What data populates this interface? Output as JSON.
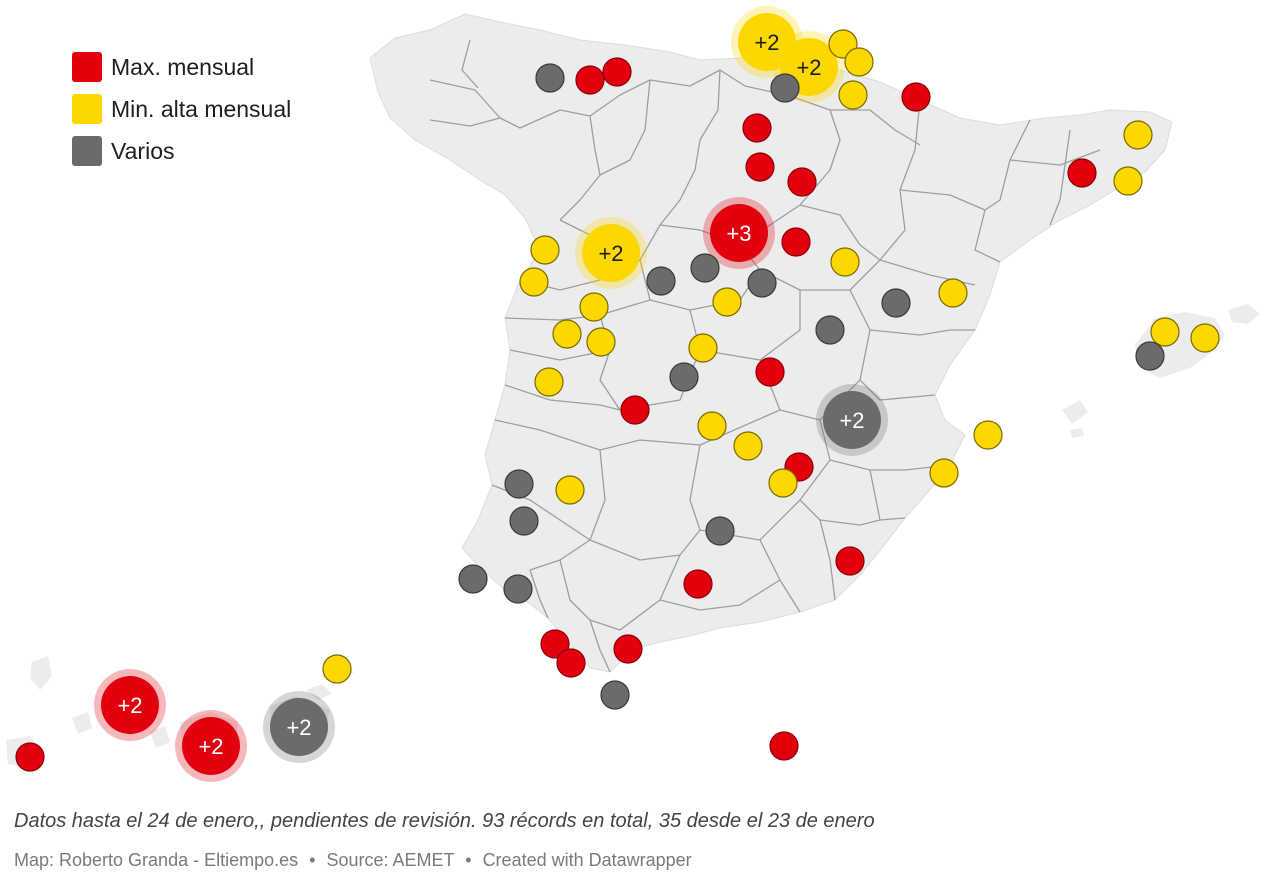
{
  "legend": {
    "items": [
      {
        "key": "max",
        "label": "Max. mensual",
        "color": "#e2000f"
      },
      {
        "key": "min",
        "label": "Min. alta mensual",
        "color": "#fcd700"
      },
      {
        "key": "varios",
        "label": "Varios",
        "color": "#6b6b6b"
      }
    ]
  },
  "colors": {
    "max": "#e2000f",
    "min": "#fcd700",
    "varios": "#6b6b6b",
    "land": "#ececec",
    "border": "#9e9e9e"
  },
  "markers": [
    {
      "type": "varios",
      "cluster": false
    },
    {
      "type": "max",
      "cluster": false
    },
    {
      "type": "max",
      "cluster": false
    },
    {
      "type": "min",
      "cluster": true,
      "label": "+2"
    },
    {
      "type": "min",
      "cluster": true,
      "label": "+2"
    },
    {
      "type": "min",
      "cluster": false
    },
    {
      "type": "min",
      "cluster": false
    },
    {
      "type": "min",
      "cluster": false
    },
    {
      "type": "varios",
      "cluster": false
    },
    {
      "type": "max",
      "cluster": false
    },
    {
      "type": "max",
      "cluster": false
    },
    {
      "type": "max",
      "cluster": false
    },
    {
      "type": "max",
      "cluster": false
    },
    {
      "type": "min",
      "cluster": false
    },
    {
      "type": "min",
      "cluster": false
    },
    {
      "type": "max",
      "cluster": false
    },
    {
      "type": "max",
      "cluster": true,
      "label": "+3"
    },
    {
      "type": "max",
      "cluster": false
    },
    {
      "type": "min",
      "cluster": true,
      "label": "+2"
    },
    {
      "type": "min",
      "cluster": false
    },
    {
      "type": "min",
      "cluster": false
    },
    {
      "type": "varios",
      "cluster": false
    },
    {
      "type": "varios",
      "cluster": false
    },
    {
      "type": "varios",
      "cluster": false
    },
    {
      "type": "min",
      "cluster": false
    },
    {
      "type": "min",
      "cluster": false
    },
    {
      "type": "varios",
      "cluster": false
    },
    {
      "type": "min",
      "cluster": false
    },
    {
      "type": "min",
      "cluster": false
    },
    {
      "type": "min",
      "cluster": false
    },
    {
      "type": "min",
      "cluster": false
    },
    {
      "type": "varios",
      "cluster": false
    },
    {
      "type": "min",
      "cluster": false
    },
    {
      "type": "min",
      "cluster": false
    },
    {
      "type": "min",
      "cluster": false
    },
    {
      "type": "min",
      "cluster": false
    },
    {
      "type": "varios",
      "cluster": false
    },
    {
      "type": "max",
      "cluster": false
    },
    {
      "type": "varios",
      "cluster": false
    },
    {
      "type": "max",
      "cluster": false
    },
    {
      "type": "varios",
      "cluster": true,
      "label": "+2"
    },
    {
      "type": "min",
      "cluster": false
    },
    {
      "type": "min",
      "cluster": false
    },
    {
      "type": "min",
      "cluster": false
    },
    {
      "type": "max",
      "cluster": false
    },
    {
      "type": "min",
      "cluster": false
    },
    {
      "type": "min",
      "cluster": false
    },
    {
      "type": "varios",
      "cluster": false
    },
    {
      "type": "varios",
      "cluster": false
    },
    {
      "type": "min",
      "cluster": false
    },
    {
      "type": "varios",
      "cluster": false
    },
    {
      "type": "max",
      "cluster": false
    },
    {
      "type": "varios",
      "cluster": false
    },
    {
      "type": "varios",
      "cluster": false
    },
    {
      "type": "max",
      "cluster": false
    },
    {
      "type": "max",
      "cluster": false
    },
    {
      "type": "max",
      "cluster": false
    },
    {
      "type": "max",
      "cluster": false
    },
    {
      "type": "varios",
      "cluster": false
    },
    {
      "type": "min",
      "cluster": false
    },
    {
      "type": "max",
      "cluster": true,
      "label": "+2"
    },
    {
      "type": "max",
      "cluster": true,
      "label": "+2"
    },
    {
      "type": "varios",
      "cluster": true,
      "label": "+2"
    },
    {
      "type": "max",
      "cluster": false
    },
    {
      "type": "max",
      "cluster": false
    }
  ],
  "footnote": "Datos hasta el 24 de enero,, pendientes de revisión. 93 récords en total, 35 desde el 23 de enero",
  "credits": {
    "map": "Map: Roberto Granda - Eltiempo.es",
    "separator": "•",
    "source": "Source: AEMET",
    "created": "Created with Datawrapper"
  }
}
